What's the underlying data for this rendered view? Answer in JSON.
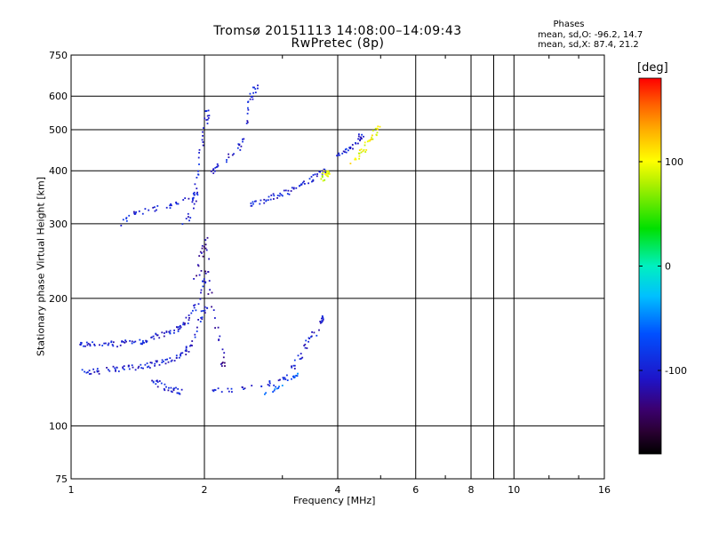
{
  "chart_data": {
    "type": "scatter",
    "title": "Tromsø 20151113 14:08:00–14:09:43",
    "subtitle": "RwPretec (8p)",
    "xlabel": "Frequency [MHz]",
    "ylabel": "Stationary phase Virtual Height [km]",
    "x_scale": "log",
    "y_scale": "log",
    "xlim": [
      1,
      16
    ],
    "ylim": [
      75,
      750
    ],
    "x_ticks": [
      1,
      2,
      4,
      6,
      8,
      10,
      16
    ],
    "x_tick_labels": [
      "1",
      "2",
      "4",
      "6",
      "8",
      "10",
      "16"
    ],
    "y_ticks": [
      75,
      100,
      200,
      300,
      400,
      500,
      600,
      750
    ],
    "y_tick_labels": [
      "75",
      "100",
      "200",
      "300",
      "400",
      "500",
      "600",
      "750"
    ],
    "grid": true,
    "stats": {
      "heading": "Phases",
      "line_o": "mean, sd,O: -96.2, 14.7",
      "line_x": "mean, sd,X:  87.4, 21.2"
    },
    "colorbar": {
      "label": "[deg]",
      "range": [
        -180,
        180
      ],
      "ticks": [
        100,
        0,
        -100
      ],
      "tick_labels": [
        "100",
        "0",
        "-100"
      ]
    },
    "traces": [
      {
        "name": "",
        "phase": -100,
        "points": [
          [
            1.03,
            155
          ],
          [
            1.07,
            157
          ],
          [
            1.1,
            156
          ],
          [
            1.15,
            157
          ],
          [
            1.2,
            157
          ],
          [
            1.25,
            156
          ],
          [
            1.3,
            158
          ],
          [
            1.35,
            157
          ],
          [
            1.4,
            158
          ],
          [
            1.45,
            159
          ],
          [
            1.5,
            161
          ],
          [
            1.55,
            163
          ],
          [
            1.6,
            165
          ],
          [
            1.65,
            166
          ],
          [
            1.7,
            168
          ],
          [
            1.75,
            171
          ],
          [
            1.8,
            175
          ],
          [
            1.85,
            181
          ],
          [
            1.9,
            190
          ],
          [
            1.95,
            205
          ],
          [
            2.0,
            220
          ]
        ]
      },
      {
        "name": "",
        "phase": -100,
        "points": [
          [
            1.05,
            136
          ],
          [
            1.1,
            135
          ],
          [
            1.15,
            135
          ],
          [
            1.2,
            136
          ],
          [
            1.25,
            137
          ],
          [
            1.3,
            137
          ],
          [
            1.35,
            138
          ],
          [
            1.4,
            138
          ],
          [
            1.45,
            139
          ],
          [
            1.5,
            140
          ],
          [
            1.55,
            141
          ],
          [
            1.6,
            142
          ],
          [
            1.65,
            143
          ],
          [
            1.7,
            145
          ],
          [
            1.75,
            147
          ],
          [
            1.8,
            150
          ],
          [
            1.85,
            155
          ],
          [
            1.9,
            165
          ],
          [
            1.95,
            180
          ],
          [
            2.0,
            190
          ]
        ]
      },
      {
        "name": "",
        "phase": -100,
        "points": [
          [
            1.5,
            128
          ],
          [
            1.55,
            127
          ],
          [
            1.6,
            125
          ],
          [
            1.65,
            123
          ],
          [
            1.7,
            122
          ],
          [
            1.75,
            121
          ]
        ]
      },
      {
        "name": "",
        "phase": -100,
        "points": [
          [
            2.05,
            123
          ],
          [
            2.2,
            122
          ],
          [
            2.4,
            122
          ],
          [
            2.6,
            124
          ],
          [
            2.8,
            126
          ],
          [
            3.0,
            130
          ],
          [
            3.1,
            135
          ],
          [
            3.2,
            141
          ],
          [
            3.3,
            148
          ],
          [
            3.4,
            156
          ],
          [
            3.5,
            164
          ],
          [
            3.6,
            172
          ],
          [
            3.7,
            180
          ]
        ]
      },
      {
        "name": "",
        "phase": -100,
        "points": [
          [
            1.8,
            300
          ],
          [
            1.85,
            315
          ],
          [
            1.9,
            340
          ],
          [
            1.92,
            380
          ],
          [
            1.95,
            420
          ],
          [
            1.97,
            470
          ],
          [
            2.0,
            520
          ],
          [
            2.03,
            550
          ]
        ]
      },
      {
        "name": "",
        "phase": -100,
        "points": [
          [
            2.05,
            395
          ],
          [
            2.1,
            405
          ],
          [
            2.2,
            420
          ],
          [
            2.3,
            440
          ],
          [
            2.4,
            460
          ],
          [
            2.45,
            500
          ],
          [
            2.5,
            560
          ],
          [
            2.55,
            600
          ],
          [
            2.6,
            630
          ]
        ]
      },
      {
        "name": "",
        "phase": -100,
        "points": [
          [
            2.5,
            335
          ],
          [
            2.6,
            337
          ],
          [
            2.7,
            340
          ],
          [
            2.8,
            345
          ],
          [
            2.9,
            350
          ],
          [
            3.0,
            355
          ],
          [
            3.1,
            360
          ],
          [
            3.2,
            365
          ],
          [
            3.3,
            370
          ],
          [
            3.4,
            378
          ],
          [
            3.5,
            385
          ],
          [
            3.6,
            392
          ],
          [
            3.7,
            400
          ]
        ]
      },
      {
        "name": "",
        "phase": -100,
        "points": [
          [
            1.3,
            300
          ],
          [
            1.35,
            310
          ],
          [
            1.4,
            320
          ],
          [
            1.5,
            325
          ],
          [
            1.6,
            330
          ],
          [
            1.7,
            335
          ],
          [
            1.8,
            340
          ],
          [
            1.9,
            350
          ]
        ]
      },
      {
        "name": "",
        "phase": 90,
        "points": [
          [
            3.65,
            385
          ],
          [
            3.7,
            390
          ],
          [
            3.75,
            395
          ],
          [
            3.8,
            400
          ]
        ]
      },
      {
        "name": "",
        "phase": -100,
        "points": [
          [
            4.0,
            440
          ],
          [
            4.1,
            445
          ],
          [
            4.2,
            450
          ],
          [
            4.3,
            460
          ],
          [
            4.4,
            470
          ],
          [
            4.5,
            485
          ]
        ]
      },
      {
        "name": "",
        "phase": 100,
        "points": [
          [
            4.3,
            420
          ],
          [
            4.4,
            430
          ],
          [
            4.5,
            445
          ],
          [
            4.6,
            460
          ],
          [
            4.7,
            475
          ],
          [
            4.8,
            490
          ],
          [
            4.9,
            505
          ]
        ]
      },
      {
        "name": "",
        "phase": -60,
        "points": [
          [
            2.7,
            120
          ],
          [
            2.9,
            123
          ],
          [
            3.0,
            127
          ],
          [
            3.2,
            132
          ]
        ]
      },
      {
        "name": "",
        "phase": -120,
        "points": [
          [
            1.9,
            220
          ],
          [
            1.95,
            240
          ],
          [
            1.97,
            260
          ],
          [
            2.0,
            280
          ],
          [
            2.02,
            240
          ],
          [
            2.05,
            210
          ],
          [
            2.1,
            180
          ],
          [
            2.15,
            160
          ],
          [
            2.2,
            140
          ]
        ]
      }
    ]
  }
}
